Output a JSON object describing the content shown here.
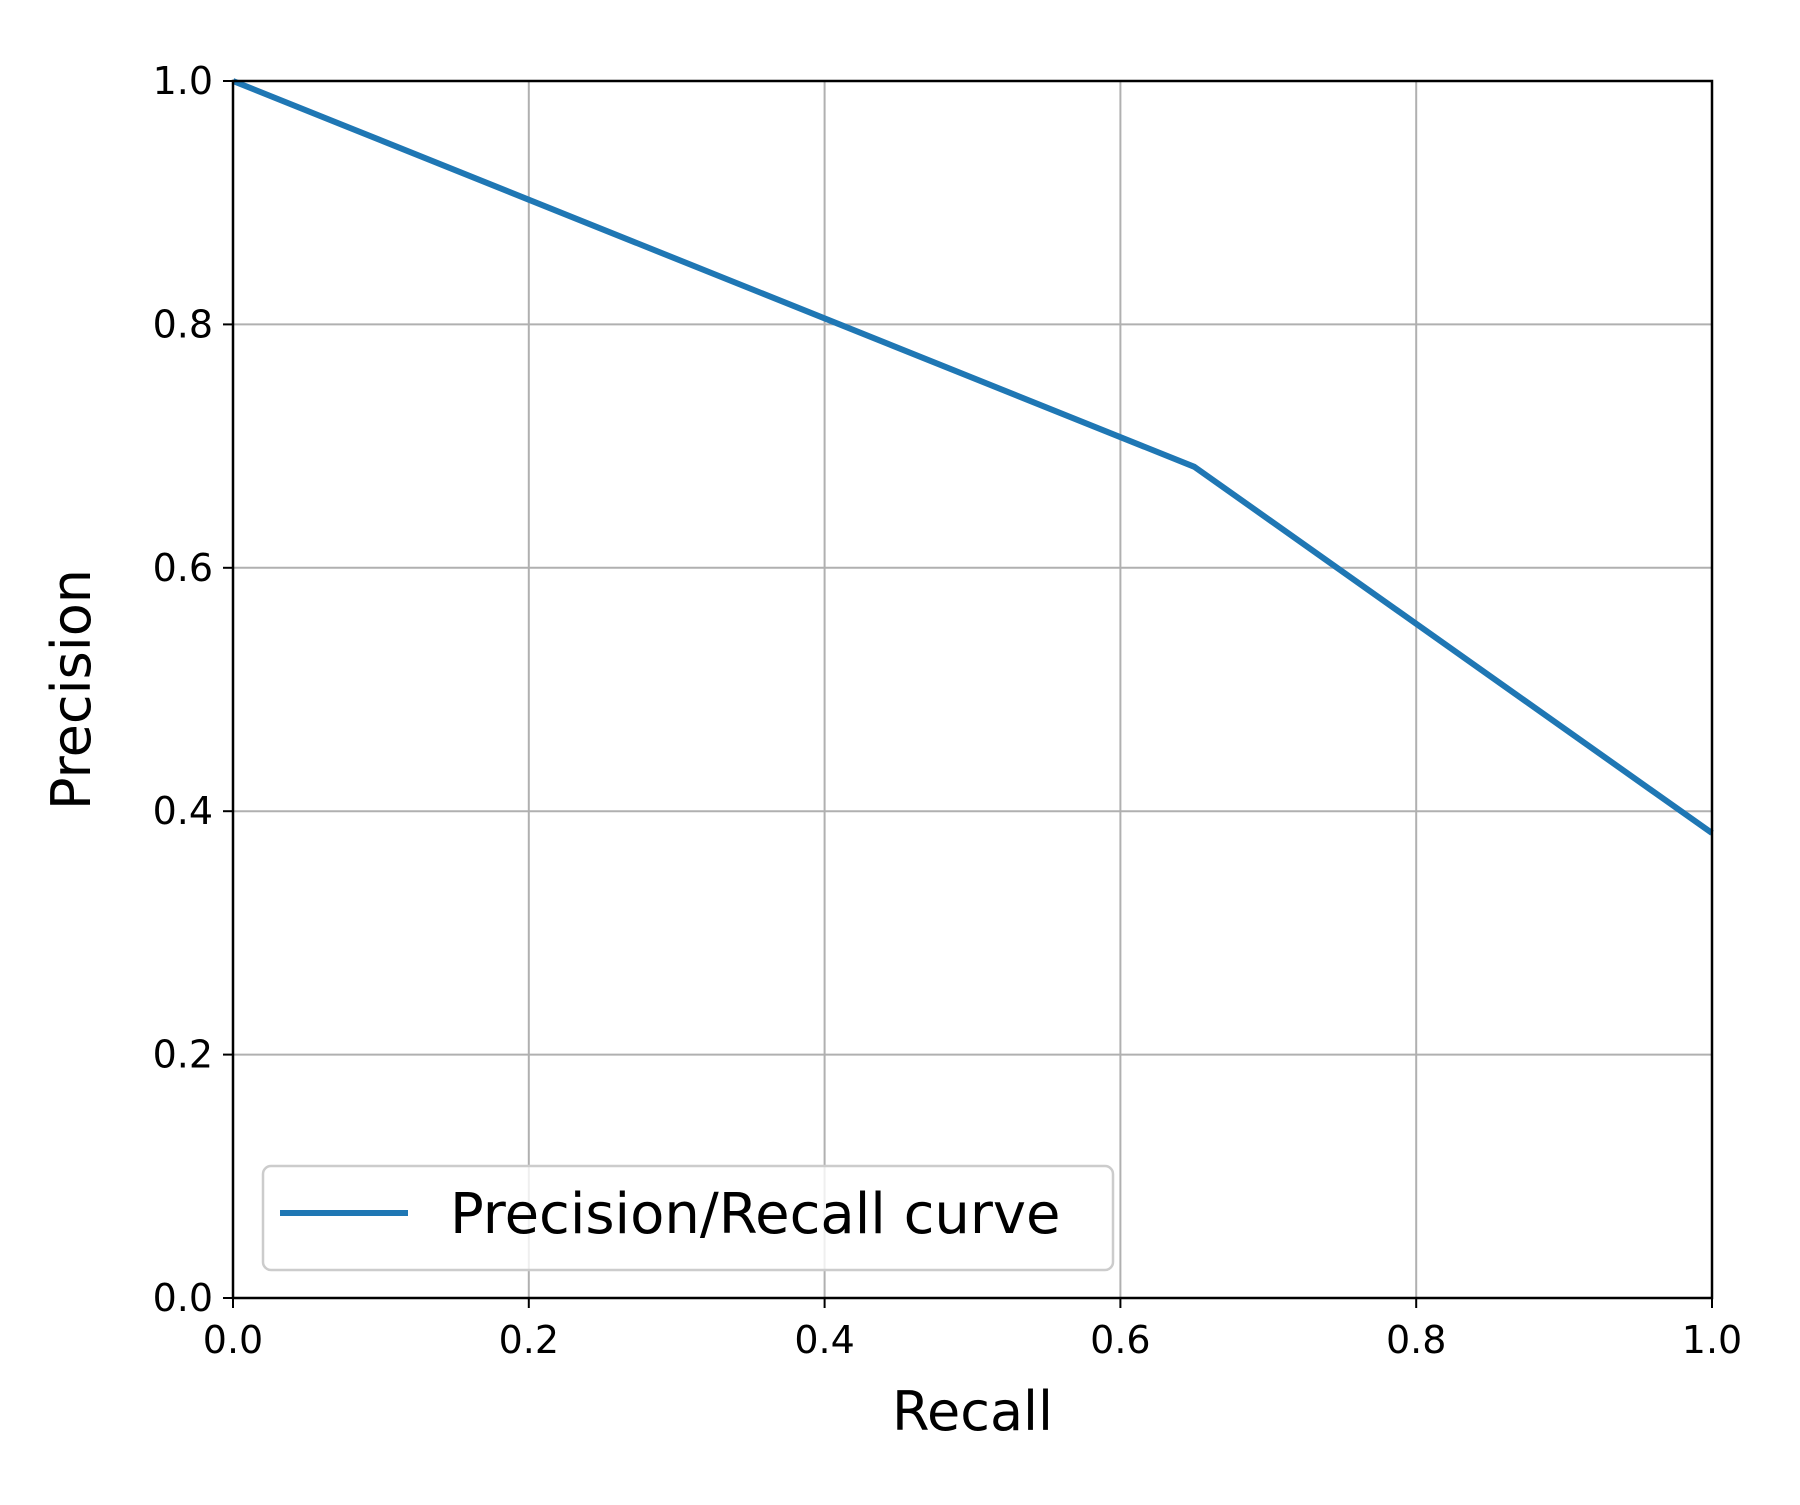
{
  "chart_data": {
    "type": "line",
    "title": "",
    "xlabel": "Recall",
    "ylabel": "Precision",
    "xlim": [
      0.0,
      1.0
    ],
    "ylim": [
      0.0,
      1.0
    ],
    "x_ticks": [
      "0.0",
      "0.2",
      "0.4",
      "0.6",
      "0.8",
      "1.0"
    ],
    "y_ticks": [
      "0.0",
      "0.2",
      "0.4",
      "0.6",
      "0.8",
      "1.0"
    ],
    "grid": true,
    "legend_position": "lower-left",
    "series": [
      {
        "name": "Precision/Recall curve",
        "color": "#1f77b4",
        "points": [
          {
            "x": 0.0,
            "y": 1.0
          },
          {
            "x": 0.65,
            "y": 0.683
          },
          {
            "x": 1.0,
            "y": 0.382
          }
        ]
      }
    ]
  }
}
